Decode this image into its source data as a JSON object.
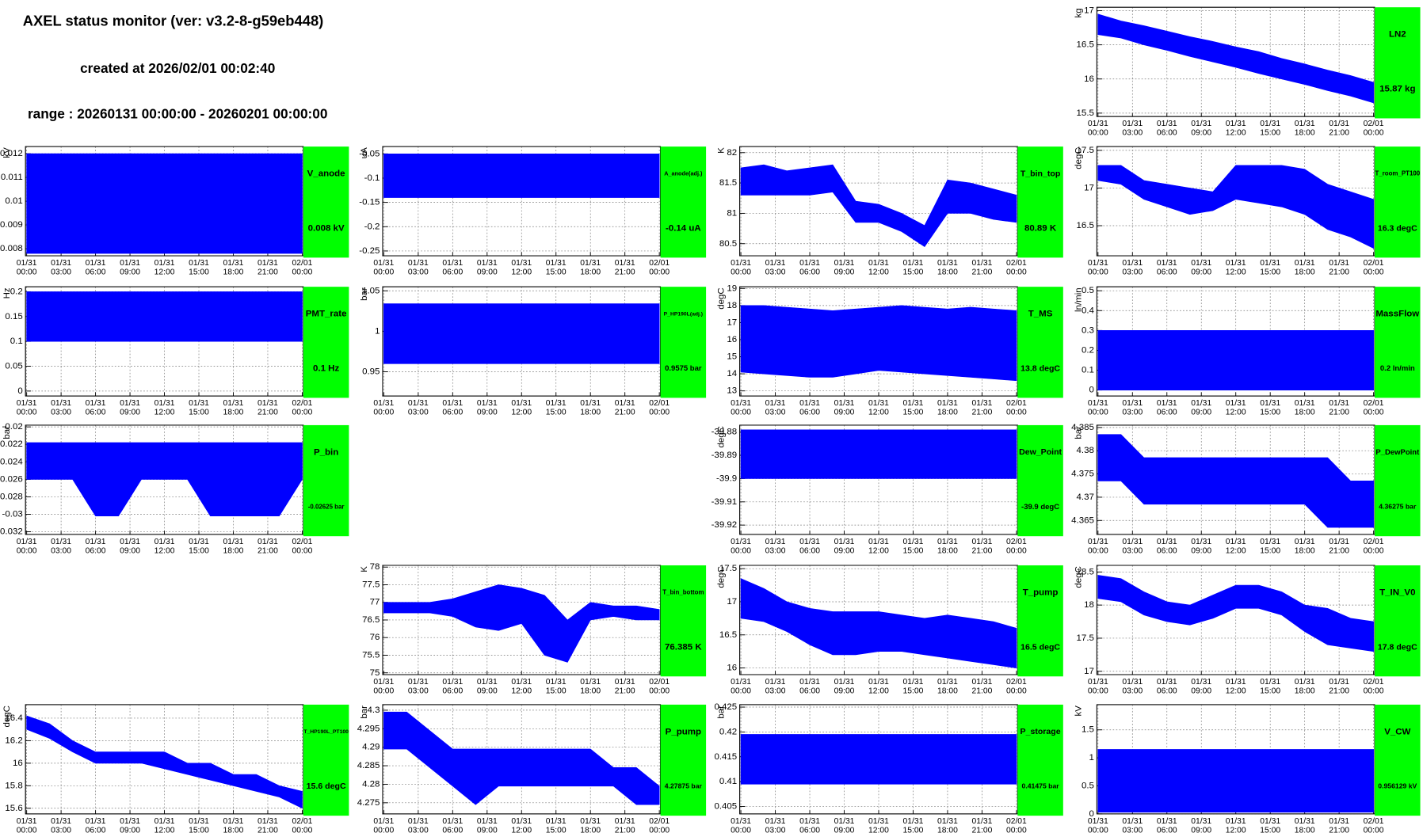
{
  "header": {
    "title": "AXEL status monitor (ver: v3.2-8-g59eb448)",
    "created": "created at 2026/02/01 00:02:40",
    "range": "range : 20260131 00:00:00 - 20260201 00:00:00"
  },
  "time_axis": {
    "xlim": [
      -0.1,
      24.1
    ],
    "xticks": [
      {
        "value": 0,
        "date": "01/31",
        "time": "00:00"
      },
      {
        "value": 3,
        "date": "01/31",
        "time": "03:00"
      },
      {
        "value": 6,
        "date": "01/31",
        "time": "06:00"
      },
      {
        "value": 9,
        "date": "01/31",
        "time": "09:00"
      },
      {
        "value": 12,
        "date": "01/31",
        "time": "12:00"
      },
      {
        "value": 15,
        "date": "01/31",
        "time": "15:00"
      },
      {
        "value": 18,
        "date": "01/31",
        "time": "18:00"
      },
      {
        "value": 21,
        "date": "01/31",
        "time": "21:00"
      },
      {
        "value": 24,
        "date": "02/01",
        "time": "00:00"
      }
    ]
  },
  "chart_data": [
    {
      "type": "band",
      "label": "LN2",
      "unit": "kg",
      "color": "#0000ff",
      "box_color": "#00ff00",
      "grid": true,
      "ylim": [
        15.45,
        17.05
      ],
      "yticks": [
        15.5,
        16,
        16.5,
        17
      ],
      "x": [
        0,
        2,
        4,
        6,
        8,
        10,
        12,
        14,
        16,
        18,
        20,
        22,
        24
      ],
      "high": [
        16.95,
        16.85,
        16.78,
        16.7,
        16.62,
        16.55,
        16.47,
        16.4,
        16.3,
        16.22,
        16.13,
        16.05,
        15.95
      ],
      "low": [
        16.65,
        16.6,
        16.5,
        16.42,
        16.33,
        16.25,
        16.17,
        16.08,
        16.0,
        15.92,
        15.83,
        15.75,
        15.65
      ],
      "last_value": 15.87,
      "last_value_label": "15.87 kg"
    },
    {
      "type": "band",
      "label": "V_anode",
      "unit": "kV",
      "color": "#0000ff",
      "box_color": "#00ff00",
      "grid": true,
      "ylim": [
        0.0077,
        0.0123
      ],
      "yticks": [
        0.008,
        0.009,
        0.01,
        0.011,
        0.012
      ],
      "x": [
        0,
        24
      ],
      "high": [
        0.012,
        0.012
      ],
      "low": [
        0.0078,
        0.0078
      ],
      "last_value": 0.008,
      "last_value_label": "0.008 kV"
    },
    {
      "type": "band",
      "label": "A_anode(adj.)",
      "unit": "uA",
      "color": "#0000ff",
      "box_color": "#00ff00",
      "grid": true,
      "ylim": [
        -0.26,
        -0.035
      ],
      "yticks": [
        -0.25,
        -0.2,
        -0.15,
        -0.1,
        -0.05
      ],
      "x": [
        0,
        24
      ],
      "high": [
        -0.05,
        -0.05
      ],
      "low": [
        -0.14,
        -0.14
      ],
      "last_value": -0.14,
      "last_value_label": "-0.14 uA"
    },
    {
      "type": "band",
      "label": "T_bin_top",
      "unit": "K",
      "color": "#0000ff",
      "box_color": "#00ff00",
      "grid": true,
      "ylim": [
        80.3,
        82.1
      ],
      "yticks": [
        80.5,
        81,
        81.5,
        82
      ],
      "x": [
        0,
        2,
        4,
        6,
        8,
        10,
        12,
        14,
        16,
        18,
        20,
        22,
        24
      ],
      "high": [
        81.75,
        81.8,
        81.7,
        81.75,
        81.8,
        81.2,
        81.15,
        81.0,
        80.8,
        81.55,
        81.5,
        81.4,
        81.3
      ],
      "low": [
        81.3,
        81.3,
        81.3,
        81.3,
        81.35,
        80.85,
        80.85,
        80.7,
        80.45,
        81.0,
        81.0,
        80.9,
        80.85
      ],
      "last_value": 80.89,
      "last_value_label": "80.89 K"
    },
    {
      "type": "band",
      "label": "T_room_PT100",
      "unit": "degC",
      "color": "#0000ff",
      "box_color": "#00ff00",
      "grid": true,
      "ylim": [
        16.1,
        17.55
      ],
      "yticks": [
        16.5,
        17,
        17.5
      ],
      "x": [
        0,
        2,
        4,
        6,
        8,
        10,
        12,
        14,
        16,
        18,
        20,
        22,
        24
      ],
      "high": [
        17.3,
        17.3,
        17.1,
        17.05,
        17.0,
        16.95,
        17.3,
        17.3,
        17.3,
        17.25,
        17.05,
        16.95,
        16.85
      ],
      "low": [
        17.1,
        17.05,
        16.85,
        16.75,
        16.65,
        16.7,
        16.85,
        16.8,
        16.75,
        16.65,
        16.45,
        16.35,
        16.2
      ],
      "last_value": 16.3,
      "last_value_label": "16.3 degC"
    },
    {
      "type": "band",
      "label": "PMT_rate",
      "unit": "Hz",
      "color": "#0000ff",
      "box_color": "#00ff00",
      "grid": true,
      "ylim": [
        -0.01,
        0.21
      ],
      "yticks": [
        0,
        0.05,
        0.1,
        0.15,
        0.2
      ],
      "x": [
        0,
        24
      ],
      "high": [
        0.2,
        0.2
      ],
      "low": [
        0.1,
        0.1
      ],
      "last_value": 0.1,
      "last_value_label": "0.1 Hz"
    },
    {
      "type": "band",
      "label": "P_HP190L(adj.)",
      "unit": "bar",
      "color": "#0000ff",
      "box_color": "#00ff00",
      "grid": true,
      "ylim": [
        0.92,
        1.055
      ],
      "yticks": [
        0.95,
        1,
        1.05
      ],
      "x": [
        0,
        24
      ],
      "high": [
        1.034,
        1.034
      ],
      "low": [
        0.96,
        0.96
      ],
      "last_value": 0.9575,
      "last_value_label": "0.9575 bar"
    },
    {
      "type": "band",
      "label": "T_MS",
      "unit": "degC",
      "color": "#0000ff",
      "box_color": "#00ff00",
      "grid": true,
      "ylim": [
        12.7,
        19.1
      ],
      "yticks": [
        13,
        14,
        15,
        16,
        17,
        18,
        19
      ],
      "x": [
        0,
        2,
        4,
        6,
        8,
        10,
        12,
        14,
        16,
        18,
        20,
        22,
        24
      ],
      "high": [
        18,
        18,
        17.9,
        17.8,
        17.7,
        17.8,
        17.9,
        18,
        17.9,
        17.8,
        17.9,
        17.8,
        17.7
      ],
      "low": [
        14.1,
        14,
        13.9,
        13.8,
        13.8,
        14,
        14.2,
        14.1,
        14,
        13.9,
        13.8,
        13.7,
        13.6
      ],
      "last_value": 13.8,
      "last_value_label": "13.8 degC"
    },
    {
      "type": "band",
      "label": "MassFlow",
      "unit": "ln/min",
      "color": "#0000ff",
      "box_color": "#00ff00",
      "grid": true,
      "ylim": [
        -0.03,
        0.52
      ],
      "yticks": [
        0,
        0.1,
        0.2,
        0.3,
        0.4,
        0.5
      ],
      "x": [
        0,
        24
      ],
      "high": [
        0.3,
        0.3
      ],
      "low": [
        0,
        0
      ],
      "last_value": 0.2,
      "last_value_label": "0.2 ln/min"
    },
    {
      "type": "band",
      "label": "P_bin",
      "unit": "bar",
      "color": "#0000ff",
      "box_color": "#00ff00",
      "grid": true,
      "ylim": [
        -0.0323,
        -0.0198
      ],
      "yticks": [
        -0.032,
        -0.03,
        -0.028,
        -0.026,
        -0.024,
        -0.022,
        -0.02
      ],
      "x": [
        0,
        2,
        4,
        6,
        8,
        10,
        12,
        14,
        16,
        18,
        20,
        22,
        24
      ],
      "high": [
        -0.0218,
        -0.0218,
        -0.0218,
        -0.0218,
        -0.0218,
        -0.0218,
        -0.0218,
        -0.0218,
        -0.0218,
        -0.0218,
        -0.0218,
        -0.0218,
        -0.0218
      ],
      "low": [
        -0.026,
        -0.026,
        -0.026,
        -0.0302,
        -0.0302,
        -0.026,
        -0.026,
        -0.026,
        -0.0302,
        -0.0302,
        -0.0302,
        -0.0302,
        -0.026
      ],
      "last_value": -0.02625,
      "last_value_label": "-0.02625 bar"
    },
    {
      "type": "band",
      "label": "Dew_Point",
      "unit": "degC",
      "color": "#0000ff",
      "box_color": "#00ff00",
      "grid": true,
      "ylim": [
        -39.924,
        -39.877
      ],
      "yticks": [
        -39.92,
        -39.91,
        -39.9,
        -39.89,
        -39.88
      ],
      "x": [
        0,
        24
      ],
      "high": [
        -39.879,
        -39.879
      ],
      "low": [
        -39.9,
        -39.9
      ],
      "last_value": -39.9,
      "last_value_label": "-39.9 degC"
    },
    {
      "type": "band",
      "label": "P_DewPoint",
      "unit": "bar",
      "color": "#0000ff",
      "box_color": "#00ff00",
      "grid": true,
      "ylim": [
        4.362,
        4.3855
      ],
      "yticks": [
        4.365,
        4.37,
        4.375,
        4.38,
        4.385
      ],
      "x": [
        0,
        2,
        4,
        6,
        8,
        10,
        12,
        14,
        16,
        18,
        20,
        22,
        24
      ],
      "high": [
        4.3835,
        4.3835,
        4.3785,
        4.3785,
        4.3785,
        4.3785,
        4.3785,
        4.3785,
        4.3785,
        4.3785,
        4.3785,
        4.3735,
        4.3735
      ],
      "low": [
        4.3735,
        4.3735,
        4.3685,
        4.3685,
        4.3685,
        4.3685,
        4.3685,
        4.3685,
        4.3685,
        4.3685,
        4.3635,
        4.3635,
        4.3635
      ],
      "last_value": 4.36275,
      "last_value_label": "4.36275 bar"
    },
    {
      "type": "band",
      "label": "T_bin_bottom",
      "unit": "K",
      "color": "#0000ff",
      "box_color": "#00ff00",
      "grid": true,
      "ylim": [
        74.95,
        78.05
      ],
      "yticks": [
        75,
        75.5,
        76,
        76.5,
        77,
        77.5,
        78
      ],
      "x": [
        0,
        2,
        4,
        6,
        8,
        10,
        12,
        14,
        16,
        18,
        20,
        22,
        24
      ],
      "high": [
        77.0,
        77.0,
        77.0,
        77.1,
        77.3,
        77.5,
        77.4,
        77.2,
        76.5,
        77.0,
        76.9,
        76.9,
        76.8
      ],
      "low": [
        76.7,
        76.7,
        76.7,
        76.6,
        76.3,
        76.2,
        76.4,
        75.5,
        75.3,
        76.5,
        76.6,
        76.5,
        76.5
      ],
      "last_value": 76.385,
      "last_value_label": "76.385 K"
    },
    {
      "type": "band",
      "label": "T_pump",
      "unit": "degC",
      "color": "#0000ff",
      "box_color": "#00ff00",
      "grid": true,
      "ylim": [
        15.9,
        17.55
      ],
      "yticks": [
        16,
        16.5,
        17,
        17.5
      ],
      "x": [
        0,
        2,
        4,
        6,
        8,
        10,
        12,
        14,
        16,
        18,
        20,
        22,
        24
      ],
      "high": [
        17.35,
        17.2,
        17.0,
        16.9,
        16.85,
        16.85,
        16.85,
        16.8,
        16.75,
        16.8,
        16.75,
        16.7,
        16.6
      ],
      "low": [
        16.75,
        16.7,
        16.55,
        16.35,
        16.2,
        16.2,
        16.25,
        16.25,
        16.2,
        16.15,
        16.1,
        16.05,
        16.0
      ],
      "last_value": 16.5,
      "last_value_label": "16.5 degC"
    },
    {
      "type": "band",
      "label": "T_IN_V0",
      "unit": "degC",
      "color": "#0000ff",
      "box_color": "#00ff00",
      "grid": true,
      "ylim": [
        16.95,
        18.6
      ],
      "yticks": [
        17,
        17.5,
        18,
        18.5
      ],
      "x": [
        0,
        2,
        4,
        6,
        8,
        10,
        12,
        14,
        16,
        18,
        20,
        22,
        24
      ],
      "high": [
        18.45,
        18.4,
        18.2,
        18.05,
        18.0,
        18.15,
        18.3,
        18.3,
        18.2,
        18.0,
        17.95,
        17.8,
        17.75
      ],
      "low": [
        18.1,
        18.05,
        17.85,
        17.75,
        17.7,
        17.8,
        17.95,
        17.95,
        17.85,
        17.6,
        17.4,
        17.35,
        17.3
      ],
      "last_value": 17.8,
      "last_value_label": "17.8 degC"
    },
    {
      "type": "band",
      "label": "T_HP190L_PT100",
      "unit": "degC",
      "color": "#0000ff",
      "box_color": "#00ff00",
      "grid": true,
      "ylim": [
        15.55,
        16.52
      ],
      "yticks": [
        15.6,
        15.8,
        16,
        16.2,
        16.4
      ],
      "x": [
        0,
        2,
        4,
        6,
        8,
        10,
        12,
        14,
        16,
        18,
        20,
        22,
        24
      ],
      "high": [
        16.42,
        16.35,
        16.2,
        16.1,
        16.1,
        16.1,
        16.1,
        16.0,
        16.0,
        15.9,
        15.9,
        15.8,
        15.75
      ],
      "low": [
        16.3,
        16.22,
        16.1,
        16.0,
        16.0,
        16.0,
        15.95,
        15.9,
        15.85,
        15.8,
        15.75,
        15.7,
        15.6
      ],
      "last_value": 15.6,
      "last_value_label": "15.6 degC"
    },
    {
      "type": "band",
      "label": "P_pump",
      "unit": "bar",
      "color": "#0000ff",
      "box_color": "#00ff00",
      "grid": true,
      "ylim": [
        4.272,
        4.3015
      ],
      "yticks": [
        4.275,
        4.28,
        4.285,
        4.29,
        4.295,
        4.3
      ],
      "x": [
        0,
        2,
        4,
        6,
        8,
        10,
        12,
        14,
        16,
        18,
        20,
        22,
        24
      ],
      "high": [
        4.2995,
        4.2995,
        4.2945,
        4.2895,
        4.2895,
        4.2895,
        4.2895,
        4.2895,
        4.2895,
        4.2895,
        4.2845,
        4.2845,
        4.2795
      ],
      "low": [
        4.2895,
        4.2895,
        4.2845,
        4.2795,
        4.2745,
        4.2795,
        4.2795,
        4.2795,
        4.2795,
        4.2795,
        4.2795,
        4.2745,
        4.2745
      ],
      "last_value": 4.27875,
      "last_value_label": "4.27875 bar"
    },
    {
      "type": "band",
      "label": "P_storage",
      "unit": "bar",
      "color": "#0000ff",
      "box_color": "#00ff00",
      "grid": true,
      "ylim": [
        0.4035,
        0.4255
      ],
      "yticks": [
        0.405,
        0.41,
        0.415,
        0.42,
        0.425
      ],
      "x": [
        0,
        24
      ],
      "high": [
        0.4195,
        0.4195
      ],
      "low": [
        0.4095,
        0.4095
      ],
      "last_value": 0.41475,
      "last_value_label": "0.41475 bar"
    },
    {
      "type": "band",
      "label": "V_CW",
      "unit": "kV",
      "color": "#0000ff",
      "box_color": "#00ff00",
      "grid": true,
      "ylim": [
        0,
        1.95
      ],
      "yticks": [
        0,
        0.5,
        1,
        1.5
      ],
      "x": [
        0,
        24
      ],
      "high": [
        1.15,
        1.15
      ],
      "low": [
        0.03,
        0.03
      ],
      "last_value": 0.956129,
      "last_value_label": "0.956129 kV"
    }
  ]
}
